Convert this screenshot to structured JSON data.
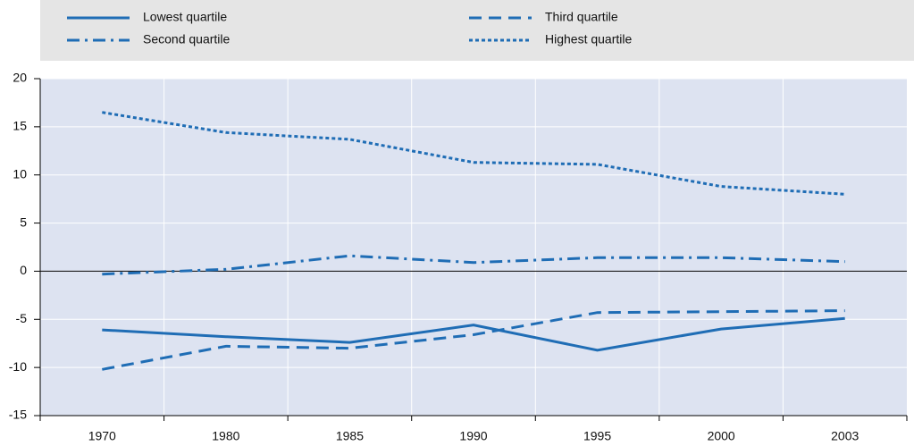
{
  "chart_data": {
    "type": "line",
    "categories": [
      "1970",
      "1980",
      "1985",
      "1990",
      "1995",
      "2000",
      "2003"
    ],
    "series": [
      {
        "name": "Lowest quartile",
        "color": "#1f6db5",
        "dash": "solid",
        "values": [
          -6.1,
          -6.8,
          -7.4,
          -5.6,
          -8.2,
          -6.0,
          -4.9
        ]
      },
      {
        "name": "Second quartile",
        "color": "#1f6db5",
        "dash": "dashdot",
        "values": [
          -0.3,
          0.2,
          1.6,
          0.9,
          1.4,
          1.4,
          1.0
        ]
      },
      {
        "name": "Third quartile",
        "color": "#1f6db5",
        "dash": "dashed",
        "values": [
          -10.2,
          -7.8,
          -8.0,
          -6.6,
          -4.3,
          -4.2,
          -4.1
        ]
      },
      {
        "name": "Highest quartile",
        "color": "#1f6db5",
        "dash": "dotted",
        "values": [
          16.5,
          14.4,
          13.7,
          11.3,
          11.1,
          8.8,
          8.0
        ]
      }
    ],
    "ylim": [
      -15,
      20
    ],
    "yticks": [
      -15,
      -10,
      -5,
      0,
      5,
      10,
      15,
      20
    ],
    "grid": true,
    "legend": "top"
  }
}
